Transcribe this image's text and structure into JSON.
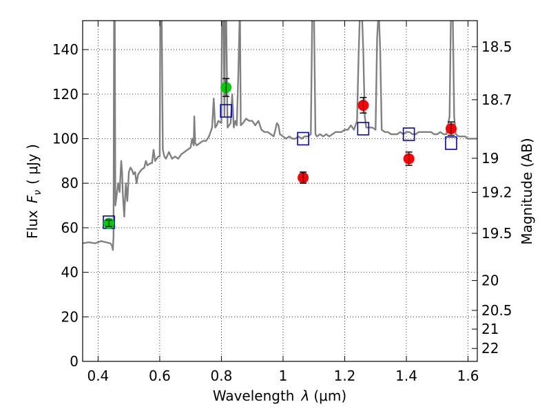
{
  "chart_data": {
    "type": "scatter",
    "xlabel": "Wavelength",
    "xlabel_symbol": "λ",
    "xlabel_unit": "(μm)",
    "ylabel": "Flux",
    "ylabel_symbol": "F",
    "ylabel_subscript": "ν",
    "ylabel_unit": "( μJy )",
    "y2label": "Magnitude (AB)",
    "xlim": [
      0.35,
      1.63
    ],
    "ylim": [
      0,
      153
    ],
    "grid": true,
    "grid_style": "dotted",
    "x_ticks": [
      {
        "value": 0.4,
        "label": "0.4"
      },
      {
        "value": 0.6,
        "label": "0.6"
      },
      {
        "value": 0.8,
        "label": "0.8"
      },
      {
        "value": 1.0,
        "label": "1"
      },
      {
        "value": 1.2,
        "label": "1.2"
      },
      {
        "value": 1.4,
        "label": "1.4"
      },
      {
        "value": 1.6,
        "label": "1.6"
      }
    ],
    "y_ticks": [
      {
        "value": 0,
        "label": "0"
      },
      {
        "value": 20,
        "label": "20"
      },
      {
        "value": 40,
        "label": "40"
      },
      {
        "value": 60,
        "label": "60"
      },
      {
        "value": 80,
        "label": "80"
      },
      {
        "value": 100,
        "label": "100"
      },
      {
        "value": 120,
        "label": "120"
      },
      {
        "value": 140,
        "label": "140"
      }
    ],
    "y2_ticks": [
      {
        "flux": 141.3,
        "label": "18.5"
      },
      {
        "flux": 117.5,
        "label": "18.7"
      },
      {
        "flux": 91.2,
        "label": "19"
      },
      {
        "flux": 75.9,
        "label": "19.2"
      },
      {
        "flux": 57.5,
        "label": "19.5"
      },
      {
        "flux": 36.3,
        "label": "20"
      },
      {
        "flux": 22.9,
        "label": "20.5"
      },
      {
        "flux": 14.5,
        "label": "21"
      },
      {
        "flux": 5.8,
        "label": "22"
      }
    ],
    "series": [
      {
        "kind": "spectrum",
        "color": "#808080",
        "points": [
          [
            0.35,
            53
          ],
          [
            0.37,
            53.5
          ],
          [
            0.39,
            53
          ],
          [
            0.41,
            54
          ],
          [
            0.425,
            53.5
          ],
          [
            0.44,
            53
          ],
          [
            0.445,
            52
          ],
          [
            0.448,
            50
          ],
          [
            0.45,
            56
          ],
          [
            0.452,
            160
          ],
          [
            0.454,
            160
          ],
          [
            0.456,
            70
          ],
          [
            0.46,
            74
          ],
          [
            0.465,
            80
          ],
          [
            0.47,
            76
          ],
          [
            0.475,
            90
          ],
          [
            0.478,
            85
          ],
          [
            0.48,
            76
          ],
          [
            0.485,
            65
          ],
          [
            0.49,
            80
          ],
          [
            0.495,
            72
          ],
          [
            0.5,
            85
          ],
          [
            0.505,
            87
          ],
          [
            0.51,
            86
          ],
          [
            0.515,
            84
          ],
          [
            0.52,
            85
          ],
          [
            0.525,
            80
          ],
          [
            0.53,
            84
          ],
          [
            0.54,
            86
          ],
          [
            0.55,
            87
          ],
          [
            0.555,
            90
          ],
          [
            0.56,
            88
          ],
          [
            0.57,
            89
          ],
          [
            0.575,
            89
          ],
          [
            0.58,
            95
          ],
          [
            0.585,
            90
          ],
          [
            0.59,
            91
          ],
          [
            0.595,
            92
          ],
          [
            0.6,
            92
          ],
          [
            0.602,
            160
          ],
          [
            0.606,
            160
          ],
          [
            0.61,
            95
          ],
          [
            0.615,
            92
          ],
          [
            0.62,
            91
          ],
          [
            0.63,
            94
          ],
          [
            0.64,
            91
          ],
          [
            0.65,
            92
          ],
          [
            0.66,
            91
          ],
          [
            0.67,
            93
          ],
          [
            0.68,
            94
          ],
          [
            0.69,
            95
          ],
          [
            0.7,
            96
          ],
          [
            0.705,
            100
          ],
          [
            0.71,
            97
          ],
          [
            0.712,
            110
          ],
          [
            0.715,
            98
          ],
          [
            0.72,
            97
          ],
          [
            0.73,
            98
          ],
          [
            0.74,
            99
          ],
          [
            0.75,
            99
          ],
          [
            0.76,
            101
          ],
          [
            0.77,
            105
          ],
          [
            0.775,
            118
          ],
          [
            0.78,
            105
          ],
          [
            0.785,
            106
          ],
          [
            0.79,
            108
          ],
          [
            0.8,
            107
          ],
          [
            0.802,
            160
          ],
          [
            0.806,
            160
          ],
          [
            0.81,
            110
          ],
          [
            0.812,
            160
          ],
          [
            0.815,
            160
          ],
          [
            0.82,
            105
          ],
          [
            0.83,
            107
          ],
          [
            0.835,
            120
          ],
          [
            0.84,
            105
          ],
          [
            0.845,
            108
          ],
          [
            0.85,
            106
          ],
          [
            0.855,
            130
          ],
          [
            0.86,
            160
          ],
          [
            0.863,
            106
          ],
          [
            0.87,
            107
          ],
          [
            0.88,
            109
          ],
          [
            0.89,
            108
          ],
          [
            0.9,
            108
          ],
          [
            0.91,
            106
          ],
          [
            0.92,
            108
          ],
          [
            0.93,
            104
          ],
          [
            0.94,
            103
          ],
          [
            0.95,
            103
          ],
          [
            0.96,
            102
          ],
          [
            0.97,
            101
          ],
          [
            0.975,
            104
          ],
          [
            0.98,
            107
          ],
          [
            0.985,
            106
          ],
          [
            0.99,
            102
          ],
          [
            1.0,
            101
          ],
          [
            1.01,
            100
          ],
          [
            1.02,
            101
          ],
          [
            1.03,
            100
          ],
          [
            1.04,
            100
          ],
          [
            1.05,
            101
          ],
          [
            1.06,
            100
          ],
          [
            1.07,
            101
          ],
          [
            1.08,
            101
          ],
          [
            1.09,
            102
          ],
          [
            1.095,
            160
          ],
          [
            1.1,
            160
          ],
          [
            1.105,
            102
          ],
          [
            1.11,
            101
          ],
          [
            1.12,
            102
          ],
          [
            1.13,
            101
          ],
          [
            1.14,
            102
          ],
          [
            1.15,
            101
          ],
          [
            1.16,
            102
          ],
          [
            1.17,
            103
          ],
          [
            1.18,
            103
          ],
          [
            1.19,
            103
          ],
          [
            1.2,
            104
          ],
          [
            1.21,
            104
          ],
          [
            1.22,
            106
          ],
          [
            1.23,
            104
          ],
          [
            1.24,
            108
          ],
          [
            1.245,
            138
          ],
          [
            1.25,
            160
          ],
          [
            1.255,
            160
          ],
          [
            1.26,
            140
          ],
          [
            1.265,
            110
          ],
          [
            1.27,
            105
          ],
          [
            1.28,
            105
          ],
          [
            1.29,
            105
          ],
          [
            1.3,
            104
          ],
          [
            1.305,
            145
          ],
          [
            1.31,
            158
          ],
          [
            1.315,
            140
          ],
          [
            1.32,
            104
          ],
          [
            1.33,
            103
          ],
          [
            1.34,
            103
          ],
          [
            1.35,
            102
          ],
          [
            1.36,
            102
          ],
          [
            1.37,
            102
          ],
          [
            1.38,
            103
          ],
          [
            1.39,
            102
          ],
          [
            1.4,
            103
          ],
          [
            1.41,
            103
          ],
          [
            1.42,
            102
          ],
          [
            1.43,
            102
          ],
          [
            1.44,
            103
          ],
          [
            1.45,
            103
          ],
          [
            1.46,
            103
          ],
          [
            1.47,
            103
          ],
          [
            1.48,
            103
          ],
          [
            1.49,
            102
          ],
          [
            1.5,
            102
          ],
          [
            1.51,
            103
          ],
          [
            1.52,
            102
          ],
          [
            1.53,
            102
          ],
          [
            1.54,
            110
          ],
          [
            1.545,
            160
          ],
          [
            1.55,
            160
          ],
          [
            1.555,
            110
          ],
          [
            1.56,
            102
          ],
          [
            1.57,
            101
          ],
          [
            1.58,
            101
          ],
          [
            1.59,
            101
          ],
          [
            1.6,
            100
          ],
          [
            1.61,
            100
          ],
          [
            1.63,
            100
          ]
        ]
      },
      {
        "kind": "synthetic",
        "marker": "square",
        "color": "#0000cc",
        "points": [
          {
            "x": 0.435,
            "y": 62.5
          },
          {
            "x": 0.815,
            "y": 112.5
          },
          {
            "x": 1.065,
            "y": 100.0
          },
          {
            "x": 1.26,
            "y": 104.5
          },
          {
            "x": 1.408,
            "y": 102.0
          },
          {
            "x": 1.545,
            "y": 98.0
          }
        ]
      },
      {
        "kind": "observed",
        "marker": "circle",
        "color": "#00cc00",
        "points": [
          {
            "x": 0.435,
            "y": 62.0,
            "err": 1.5
          },
          {
            "x": 0.815,
            "y": 123.0,
            "err": 4.0
          }
        ]
      },
      {
        "kind": "observed",
        "marker": "circle",
        "color": "#ff0000",
        "points": [
          {
            "x": 1.065,
            "y": 82.5,
            "err": 2.5
          },
          {
            "x": 1.26,
            "y": 115.0,
            "err": 3.5
          },
          {
            "x": 1.408,
            "y": 91.0,
            "err": 3.0
          },
          {
            "x": 1.545,
            "y": 104.5,
            "err": 3.0
          }
        ]
      }
    ]
  }
}
